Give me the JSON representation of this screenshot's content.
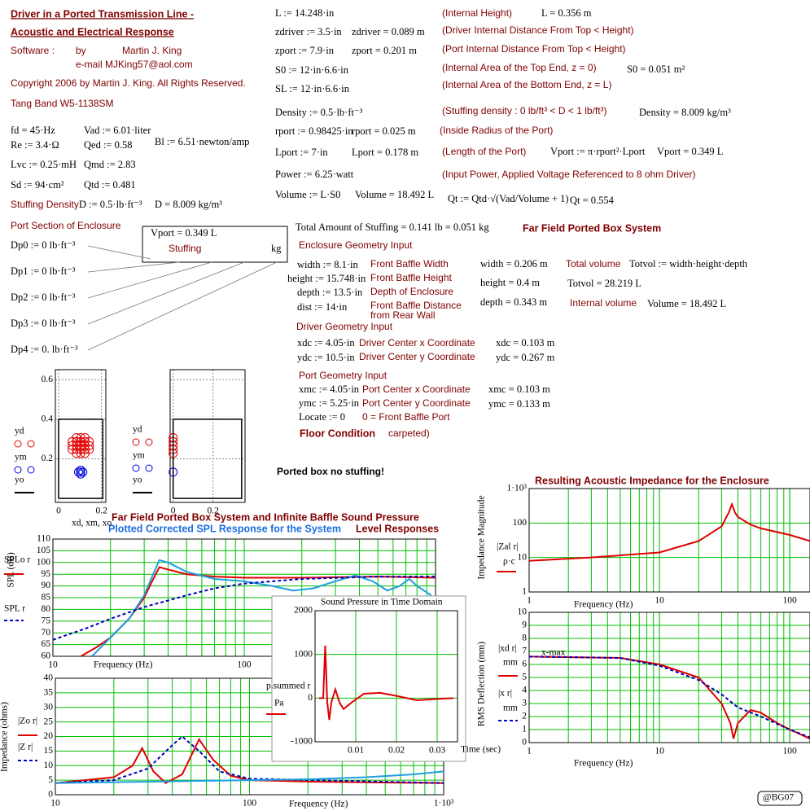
{
  "texts": [
    "Driver in a Ported Transmission Line -",
    "Acoustic and Electrical Response",
    "Software :",
    "by",
    "Martin J. King",
    "e-mail  MJKing57@aol.com",
    "Copyright 2006 by Martin J. King. All Rights Reserved.",
    "Tang Band W5-1138SM",
    "fd = 45·Hz",
    "Vad := 6.01·liter",
    "Re := 3.4·Ω",
    "Qed := 0.58",
    "Bl := 6.51·newton/amp",
    "Lvc := 0.25·mH",
    "Qmd := 2.83",
    "Sd := 94·cm²",
    "Qtd := 0.481",
    "Stuffing Density",
    "D := 0.5·lb·ft⁻³",
    "D = 8.009 kg/m³",
    "Port Section of Enclosure",
    "Dp0 := 0  lb·ft⁻³",
    "Dp1 := 0  lb·ft⁻³",
    "Dp2 := 0  lb·ft⁻³",
    "Dp3 := 0  lb·ft⁻³",
    "Dp4 := 0.  lb·ft⁻³",
    "Vport = 0.349 L",
    "Stuffing",
    "kg",
    "L := 14.248·in",
    "zdriver := 3.5·in",
    "zdriver = 0.089 m",
    "zport := 7.9·in",
    "zport = 0.201 m",
    "S0 := 12·in·6.6·in",
    "SL := 12·in·6.6·in",
    "Density := 0.5·lb·ft⁻³",
    "rport := 0.98425·in",
    "rport = 0.025 m",
    "Lport := 7·in",
    "Lport = 0.178 m",
    "Power := 6.25·watt",
    "Volume := L·S0",
    "Volume = 18.492 L",
    "(Internal Height)",
    "L = 0.356 m",
    "(Driver Internal Distance From Top < Height)",
    "(Port Internal Distance From Top < Height)",
    "(Internal Area of the Top End, z = 0)",
    "S0 = 0.051 m²",
    "(Internal Area of the Bottom End, z = L)",
    "(Stuffing density : 0 lb/ft³ < D < 1 lb/ft³)",
    "Density = 8.009 kg/m³",
    "(Inside Radius of the Port)",
    "(Length of the Port)",
    "Vport := π·rport²·Lport",
    "Vport = 0.349 L",
    "(Input Power, Applied Voltage Referenced to 8 ohm Driver)",
    "Qt := Qtd·√(Vad/Volume + 1)",
    "Qt = 0.554",
    "Total Amount of Stuffing  = 0.141 lb  = 0.051 kg",
    "Far Field Ported Box System",
    "Enclosure Geometry Input",
    "width := 8.1·in",
    "Front Baffle Width",
    "width = 0.206 m",
    "Total volume",
    "Totvol := width·height·depth",
    "height := 15.748·in",
    "Front Baffle Height",
    "height = 0.4 m",
    "Totvol = 28.219 L",
    "depth := 13.5·in",
    "Depth of Enclosure",
    "dist := 14·in",
    "Front Baffle Distance",
    "from Rear Wall",
    "depth = 0.343 m",
    "Internal volume",
    "Volume = 18.492 L",
    "Driver Geometry Input",
    "xdc := 4.05·in",
    "Driver Center x Coordinate",
    "xdc = 0.103 m",
    "ydc := 10.5·in",
    "Driver Center y Coordinate",
    "ydc = 0.267 m",
    "Port Geometry Input",
    "xmc := 4.05·in",
    "Port Center x Coordinate",
    "xmc = 0.103 m",
    "ymc := 5.25·in",
    "Port Center y Coordinate",
    "ymc = 0.133 m",
    "Locate := 0",
    "0 = Front Baffle Port",
    "Floor Condition",
    "carpeted)",
    "Ported box no stuffing!",
    "Far Field Ported Box System and Infinite Baffle Sound Pressure",
    "Plotted Corrected SPL Response for the System",
    "Level Responses",
    "Resulting Acoustic Impedance for the Enclosure",
    "@BG07"
  ],
  "chart_data": [
    {
      "type": "scatter",
      "xlim": [
        -0.015,
        0.22
      ],
      "ylim": [
        -0.02,
        0.65
      ],
      "xticks": [
        0,
        0.2
      ],
      "yticks": [
        0.2,
        0.4,
        0.6
      ],
      "xlabel": "xd, xm, xo",
      "series": [
        {
          "name": "yd",
          "color": "#e00000",
          "marker": "circle",
          "x": [
            0.083,
            0.103,
            0.123,
            0.063,
            0.083,
            0.103,
            0.123,
            0.143,
            0.063,
            0.083,
            0.103,
            0.123,
            0.143,
            0.063,
            0.083,
            0.103,
            0.123,
            0.143,
            0.083,
            0.103,
            0.123
          ],
          "values": [
            0.307,
            0.307,
            0.307,
            0.287,
            0.287,
            0.287,
            0.287,
            0.287,
            0.267,
            0.267,
            0.267,
            0.267,
            0.267,
            0.247,
            0.247,
            0.247,
            0.247,
            0.247,
            0.227,
            0.227,
            0.227
          ]
        },
        {
          "name": "ym",
          "color": "#0000e0",
          "marker": "circle",
          "x": [
            0.093,
            0.113,
            0.103,
            0.103,
            0.103
          ],
          "values": [
            0.133,
            0.133,
            0.123,
            0.143,
            0.133
          ]
        },
        {
          "name": "yo",
          "color": "#000000",
          "x": [
            0,
            0.206,
            0.206,
            0,
            0
          ],
          "values": [
            0,
            0,
            0.4,
            0.4,
            0
          ]
        }
      ]
    },
    {
      "type": "scatter",
      "xlim": [
        -0.015,
        0.36
      ],
      "ylim": [
        -0.02,
        0.65
      ],
      "xticks": [
        0,
        0.2
      ],
      "ygrid": [
        0.2,
        0.4,
        0.6
      ],
      "series": [
        {
          "name": "yd",
          "color": "#e00000",
          "marker": "circle",
          "x": [
            0,
            0,
            0,
            0,
            0
          ],
          "values": [
            0.227,
            0.247,
            0.267,
            0.287,
            0.307
          ]
        },
        {
          "name": "ym",
          "color": "#0000e0",
          "marker": "circle",
          "x": [
            0
          ],
          "values": [
            0.133
          ]
        },
        {
          "name": "yo",
          "color": "#000000",
          "x": [
            0,
            0.343,
            0.343,
            0,
            0
          ],
          "values": [
            0,
            0,
            0.4,
            0.4,
            0
          ]
        }
      ]
    },
    {
      "type": "line",
      "xlog": true,
      "xlim": [
        10,
        1000
      ],
      "ylim": [
        60,
        110
      ],
      "xticks": [
        10,
        100
      ],
      "yticks": [
        60,
        65,
        70,
        75,
        80,
        85,
        90,
        95,
        100,
        105,
        110
      ],
      "xgrid": [
        20,
        30,
        40,
        50,
        60,
        70,
        80,
        90,
        100,
        200,
        300,
        400,
        500,
        600,
        700,
        800,
        900
      ],
      "ylabel": "SPL (dB)",
      "xlabel": "Frequency (Hz)",
      "series": [
        {
          "name": "SPLo r",
          "color": "#e00000",
          "x": [
            14,
            17,
            20,
            25,
            30,
            33,
            36,
            40,
            50,
            70,
            100,
            200,
            500,
            1000
          ],
          "values": [
            60,
            64,
            68,
            76,
            85,
            92,
            98,
            97,
            95,
            94,
            93.5,
            93.5,
            94,
            93.5
          ]
        },
        {
          "color": "#1e9fe0",
          "x": [
            16,
            20,
            25,
            30,
            33,
            36,
            40,
            50,
            70,
            100,
            140,
            180,
            230,
            300,
            380,
            470,
            560,
            650,
            730,
            800,
            950
          ],
          "values": [
            60,
            68,
            76,
            86,
            94,
            101,
            100,
            96,
            93,
            92,
            90,
            88,
            89,
            92,
            94.5,
            92,
            88,
            90,
            93,
            90,
            86
          ]
        },
        {
          "name": "SPL r",
          "color": "#0000c0",
          "dash": true,
          "x": [
            10,
            15,
            20,
            30,
            50,
            70,
            100,
            200,
            500,
            1000
          ],
          "values": [
            67,
            72,
            76,
            81,
            86,
            89,
            91,
            93,
            94,
            94
          ]
        }
      ]
    },
    {
      "type": "line",
      "xlog": true,
      "ylog": true,
      "xlim": [
        1,
        143
      ],
      "ylim": [
        1,
        1000
      ],
      "xticks": [
        1,
        10,
        100
      ],
      "yticks": [
        1,
        10,
        100,
        {
          "value": 1000,
          "label": "1·10³"
        }
      ],
      "xgrid": [
        2,
        3,
        4,
        5,
        6,
        7,
        8,
        9,
        10,
        20,
        30,
        40,
        50,
        60,
        70,
        80,
        90,
        100
      ],
      "ylabel": "Impedance Magnitude",
      "xlabel": "Frequency (Hz)",
      "labels": [
        "ρ·c"
      ],
      "series": [
        {
          "name": "|Zal r|",
          "color": "#e00000",
          "x": [
            1,
            3,
            10,
            20,
            30,
            34,
            36,
            38,
            40,
            50,
            60,
            100,
            143
          ],
          "values": [
            8,
            10,
            14,
            30,
            80,
            200,
            350,
            200,
            150,
            90,
            70,
            45,
            30
          ]
        }
      ]
    },
    {
      "type": "line",
      "xlog": true,
      "xlim": [
        1,
        143
      ],
      "ylim": [
        0,
        10
      ],
      "xticks": [
        1,
        10,
        100
      ],
      "yticks": [
        0,
        1,
        2,
        3,
        4,
        5,
        6,
        7,
        8,
        9,
        10
      ],
      "xgrid": [
        2,
        3,
        4,
        5,
        6,
        7,
        8,
        9,
        10,
        20,
        30,
        40,
        50,
        60,
        70,
        80,
        90,
        100
      ],
      "ylabel": "RMS Deflection (mm)",
      "xlabel": "Frequency (Hz)",
      "labels": [
        "mm",
        "mm",
        "x-max"
      ],
      "series": [
        {
          "name": "|xd r|",
          "color": "#e00000",
          "x": [
            1,
            5,
            10,
            20,
            30,
            35,
            37,
            40,
            50,
            60,
            80,
            100,
            143
          ],
          "values": [
            6.6,
            6.5,
            6,
            5,
            3,
            1.5,
            0.3,
            1.5,
            2.5,
            2.3,
            1.5,
            1,
            0.3
          ]
        },
        {
          "name": "|x r|",
          "color": "#0000c0",
          "dash": true,
          "x": [
            1,
            5,
            10,
            20,
            30,
            40,
            60,
            100,
            143
          ],
          "values": [
            6.6,
            6.5,
            5.9,
            4.8,
            3.7,
            2.7,
            2,
            1,
            0.4
          ]
        }
      ]
    },
    {
      "type": "line",
      "xlog": true,
      "xlim": [
        10,
        1000
      ],
      "ylim": [
        0,
        40
      ],
      "xticks": [
        10,
        100,
        {
          "value": 1000,
          "label": "1·10³"
        }
      ],
      "yticks": [
        0,
        5,
        10,
        15,
        20,
        25,
        30,
        35,
        40
      ],
      "xgrid": [
        20,
        30,
        40,
        50,
        60,
        70,
        80,
        90,
        100,
        200,
        300,
        400,
        500,
        600,
        700,
        800,
        900
      ],
      "ylabel": "Impedance (ohms)",
      "xlabel": "Frequency (Hz)",
      "series": [
        {
          "name": "|Zo r|",
          "color": "#e00000",
          "x": [
            10,
            20,
            25,
            28,
            32,
            37,
            45,
            55,
            65,
            80,
            100,
            200,
            1000
          ],
          "values": [
            4,
            6,
            10,
            16,
            8,
            4,
            7,
            19,
            12,
            6.5,
            5,
            4.5,
            4
          ]
        },
        {
          "name": "|Z r|",
          "color": "#0000c0",
          "dash": true,
          "x": [
            10,
            20,
            30,
            40,
            45,
            55,
            70,
            100,
            1000
          ],
          "values": [
            4,
            5,
            9,
            17,
            20,
            15,
            8,
            5.5,
            4
          ]
        },
        {
          "color": "#1e9fe0",
          "x": [
            10,
            100,
            200,
            400,
            700,
            1000
          ],
          "values": [
            4,
            5,
            5.3,
            6,
            7,
            8
          ]
        }
      ]
    },
    {
      "type": "line",
      "title": "Sound Pressure in Time Domain",
      "xlim": [
        0,
        0.035
      ],
      "ylim": [
        -1000,
        2000
      ],
      "xticks": [
        0.01,
        0.02,
        0.03
      ],
      "yticks": [
        -1000,
        0,
        1000,
        2000
      ],
      "xlabel": "Time (sec)",
      "labels": [
        "Pa"
      ],
      "series": [
        {
          "name": "p.summed r",
          "color": "#e00000",
          "x": [
            0.001,
            0.002,
            0.0025,
            0.003,
            0.0035,
            0.004,
            0.005,
            0.006,
            0.007,
            0.009,
            0.012,
            0.016,
            0.02,
            0.025,
            0.03,
            0.034
          ],
          "values": [
            0,
            0,
            1200,
            -100,
            -500,
            -100,
            200,
            -100,
            -250,
            -100,
            100,
            120,
            50,
            -50,
            -20,
            0
          ]
        }
      ]
    }
  ]
}
